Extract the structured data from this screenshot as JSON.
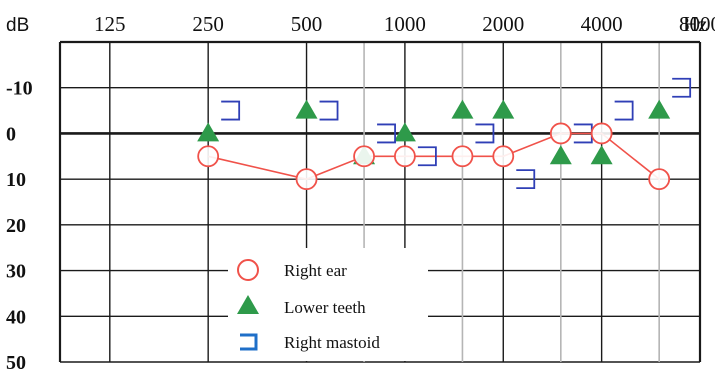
{
  "chart_data": {
    "type": "scatter",
    "y_unit": "dB",
    "x_unit": "Hz",
    "x_tick_labels": [
      "125",
      "250",
      "500",
      "1000",
      "2000",
      "4000",
      "8000"
    ],
    "y_tick_labels": [
      "-10",
      "0",
      "10",
      "20",
      "30",
      "40",
      "50"
    ],
    "x_ticks_hz": [
      125,
      250,
      500,
      1000,
      2000,
      4000,
      8000
    ],
    "y_ticks_db": [
      -10,
      0,
      10,
      20,
      30,
      40,
      50
    ],
    "xscale": "log",
    "xlim_hz": [
      88,
      8000
    ],
    "ylim_db": [
      -20,
      50
    ],
    "y_inverted": true,
    "minor_x_gridlines_hz": [
      750,
      1500,
      3000,
      6000
    ],
    "legend_position": "bottom-center",
    "colors": {
      "right_ear": "#f0524a",
      "lower_teeth": "#2e9a4a",
      "right_mastoid": "#2f3fb6",
      "grid_major": "#1a1a1a",
      "grid_minor": "#b5b5b5"
    },
    "series": [
      {
        "name": "Right ear",
        "marker": "circle",
        "connected": true,
        "points": [
          {
            "x": 250,
            "y": 5
          },
          {
            "x": 500,
            "y": 10
          },
          {
            "x": 750,
            "y": 5
          },
          {
            "x": 1000,
            "y": 5
          },
          {
            "x": 1500,
            "y": 5
          },
          {
            "x": 2000,
            "y": 5
          },
          {
            "x": 3000,
            "y": 0
          },
          {
            "x": 4000,
            "y": 0
          },
          {
            "x": 6000,
            "y": 10
          }
        ]
      },
      {
        "name": "Lower teeth",
        "marker": "triangle",
        "connected": false,
        "points": [
          {
            "x": 250,
            "y": 0
          },
          {
            "x": 500,
            "y": -5
          },
          {
            "x": 750,
            "y": 5
          },
          {
            "x": 1000,
            "y": 0
          },
          {
            "x": 1500,
            "y": -5
          },
          {
            "x": 2000,
            "y": -5
          },
          {
            "x": 3000,
            "y": 5
          },
          {
            "x": 4000,
            "y": 5
          },
          {
            "x": 6000,
            "y": -5
          }
        ]
      },
      {
        "name": "Right mastoid",
        "marker": "bracket",
        "connected": false,
        "points": [
          {
            "x": 250,
            "y": -5
          },
          {
            "x": 500,
            "y": -5
          },
          {
            "x": 750,
            "y": 0
          },
          {
            "x": 1000,
            "y": 5
          },
          {
            "x": 1500,
            "y": 0
          },
          {
            "x": 2000,
            "y": 10
          },
          {
            "x": 3000,
            "y": 0
          },
          {
            "x": 4000,
            "y": -5
          },
          {
            "x": 6000,
            "y": -10
          }
        ]
      }
    ]
  }
}
